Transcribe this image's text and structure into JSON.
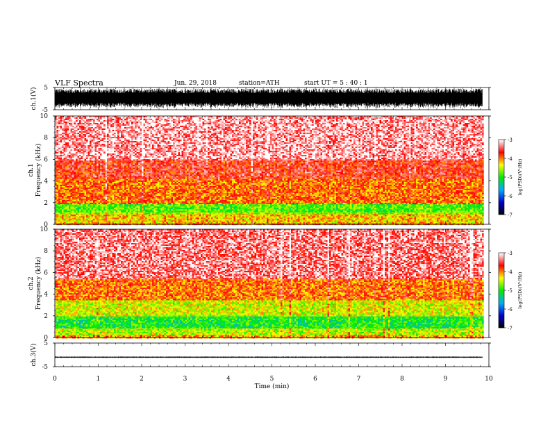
{
  "header": {
    "title": "VLF  Spectra",
    "date": "Jun. 29, 2018",
    "station": "station=ATH",
    "start": "start  UT  =    5  : 40 : 1"
  },
  "colorbar": {
    "label": "log(PSD)(V²/Hz)",
    "ticks": [
      "-3",
      "-4",
      "-5",
      "-6",
      "-7"
    ],
    "colors": [
      "#000000",
      "#0000cc",
      "#00aaff",
      "#00ee00",
      "#ffff00",
      "#ff0000",
      "#ffffff"
    ]
  },
  "chart_data": [
    {
      "type": "line",
      "name": "ch1-waveform",
      "ylabel": "ch.1(V)",
      "ylim": [
        -5,
        5
      ],
      "yticks": [
        "5",
        "-5"
      ],
      "note_values": "broadband noise filling approx -4.5..4.5 V",
      "x": [
        0,
        9.85
      ],
      "amplitude": 4.5
    },
    {
      "type": "heatmap",
      "name": "ch1-spectrogram",
      "channel_label": "ch.1",
      "ylabel": "Frequency (kHz)",
      "ylim": [
        0,
        10
      ],
      "yticks": [
        "0",
        "2",
        "4",
        "6",
        "8",
        "10"
      ],
      "xlim": [
        0,
        10
      ],
      "data_end_min": 9.85,
      "bands_khz": [
        {
          "from": 0.0,
          "to": 0.2,
          "level": -4.0
        },
        {
          "from": 0.2,
          "to": 1.0,
          "level": -4.3
        },
        {
          "from": 1.0,
          "to": 1.2,
          "level": -4.7
        },
        {
          "from": 1.2,
          "to": 1.9,
          "level": -4.9
        },
        {
          "from": 1.9,
          "to": 4.3,
          "level": -4.0
        },
        {
          "from": 4.3,
          "to": 6.0,
          "level": -3.7
        },
        {
          "from": 6.0,
          "to": 10.0,
          "level": -3.3
        }
      ]
    },
    {
      "type": "heatmap",
      "name": "ch2-spectrogram",
      "channel_label": "ch.2",
      "ylabel": "Frequency (kHz)",
      "ylim": [
        0,
        10
      ],
      "yticks": [
        "0",
        "2",
        "4",
        "6",
        "8",
        "10"
      ],
      "xlim": [
        0,
        10
      ],
      "data_end_min": 9.85,
      "bands_khz": [
        {
          "from": 0.0,
          "to": 0.3,
          "level": -4.2
        },
        {
          "from": 0.3,
          "to": 0.9,
          "level": -4.6
        },
        {
          "from": 0.9,
          "to": 2.0,
          "level": -5.1
        },
        {
          "from": 2.0,
          "to": 3.5,
          "level": -4.5
        },
        {
          "from": 3.5,
          "to": 5.5,
          "level": -4.0
        },
        {
          "from": 5.5,
          "to": 10.0,
          "level": -3.4
        }
      ]
    },
    {
      "type": "line",
      "name": "ch3-waveform",
      "ylabel": "ch.3(V)",
      "ylim": [
        -5,
        5
      ],
      "yticks": [
        "5",
        "-5"
      ],
      "x": [
        0,
        9.85
      ],
      "offset": -1.0,
      "amplitude": 0.3
    }
  ],
  "xaxis": {
    "label": "Time  (min)",
    "ticks": [
      "0",
      "1",
      "2",
      "3",
      "4",
      "5",
      "6",
      "7",
      "8",
      "9",
      "10"
    ]
  }
}
